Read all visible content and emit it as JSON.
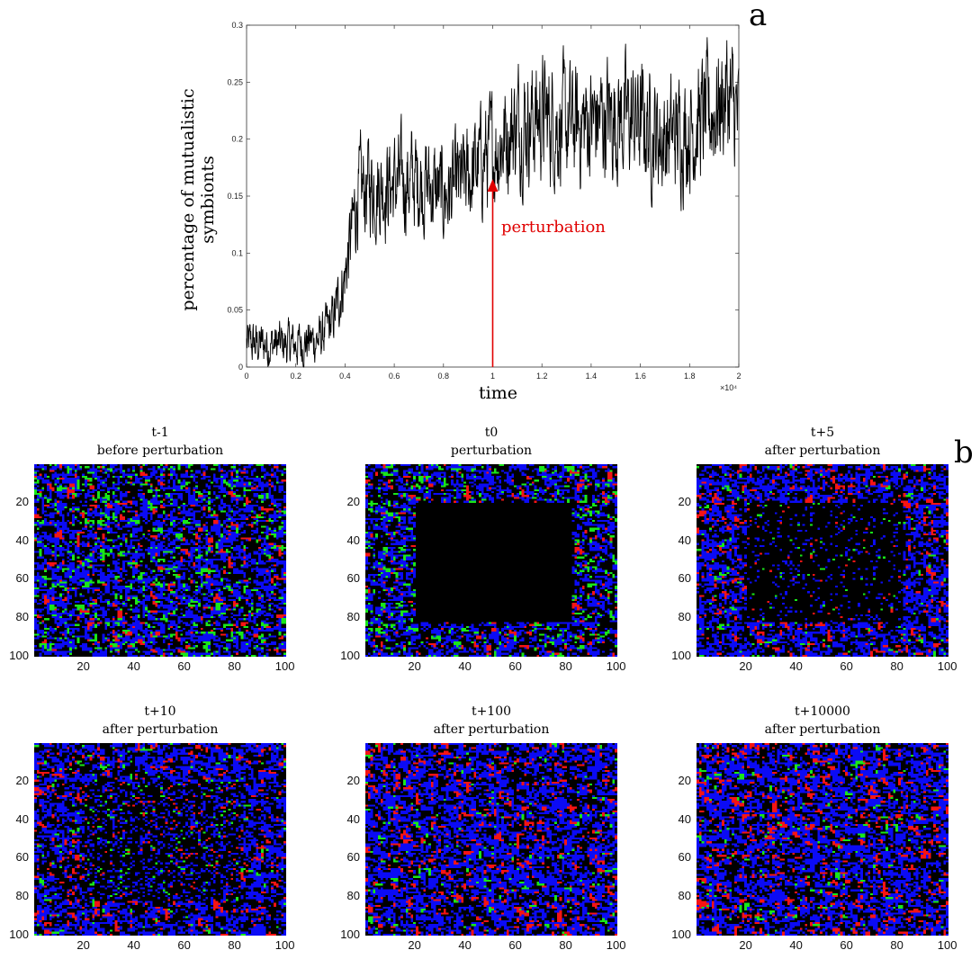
{
  "panel_a_letter": "a",
  "panel_b_letter": "b",
  "chart_data": [
    {
      "type": "line",
      "title": "",
      "xlabel": "time",
      "ylabel": "percentage of mutualistic symbionts",
      "x_multiplier_label": "×10⁴",
      "xlim": [
        0,
        2
      ],
      "ylim": [
        0,
        0.3
      ],
      "xticks": [
        "0",
        "0.2",
        "0.4",
        "0.6",
        "0.8",
        "1",
        "1.2",
        "1.4",
        "1.6",
        "1.8",
        "2"
      ],
      "yticks": [
        "0",
        "0.05",
        "0.1",
        "0.15",
        "0.2",
        "0.25",
        "0.3"
      ],
      "line_color": "#000000",
      "series": [
        {
          "x": [
            0,
            0.1,
            0.2,
            0.3,
            0.35,
            0.4,
            0.45,
            0.5,
            0.6,
            0.7,
            0.8,
            0.9,
            0.95,
            1.0,
            1.1,
            1.2,
            1.3,
            1.4,
            1.5,
            1.6,
            1.7,
            1.8,
            1.9,
            1.95,
            2.0
          ],
          "values": [
            0.02,
            0.02,
            0.02,
            0.025,
            0.04,
            0.08,
            0.15,
            0.16,
            0.16,
            0.165,
            0.15,
            0.165,
            0.18,
            0.19,
            0.215,
            0.22,
            0.21,
            0.215,
            0.22,
            0.215,
            0.2,
            0.21,
            0.225,
            0.24,
            0.215
          ]
        }
      ],
      "annotation": {
        "text": "perturbation",
        "x": 1,
        "y_tip": 0.165,
        "color": "#e00000"
      }
    },
    {
      "type": "heatmap",
      "title": "t-1",
      "subtitle": "before perturbation",
      "grid_size": 100,
      "xticks": [
        "20",
        "40",
        "60",
        "80",
        "100"
      ],
      "yticks": [
        "20",
        "40",
        "60",
        "80",
        "100"
      ],
      "colors": {
        "empty": "#000000",
        "blue": "#0b0bf5",
        "green": "#19e619",
        "red": "#f51414"
      },
      "fractions": {
        "blue": 0.38,
        "green": 0.1,
        "red": 0.05
      },
      "cleared_region": null
    },
    {
      "type": "heatmap",
      "title": "t0",
      "subtitle": "perturbation",
      "grid_size": 100,
      "xticks": [
        "20",
        "40",
        "60",
        "80",
        "100"
      ],
      "yticks": [
        "20",
        "40",
        "60",
        "80",
        "100"
      ],
      "colors": {
        "empty": "#000000",
        "blue": "#0b0bf5",
        "green": "#19e619",
        "red": "#f51414"
      },
      "fractions": {
        "blue": 0.38,
        "green": 0.1,
        "red": 0.05
      },
      "cleared_region": [
        20,
        82,
        20,
        82
      ]
    },
    {
      "type": "heatmap",
      "title": "t+5",
      "subtitle": "after perturbation",
      "grid_size": 100,
      "xticks": [
        "20",
        "40",
        "60",
        "80",
        "100"
      ],
      "yticks": [
        "20",
        "40",
        "60",
        "80",
        "100"
      ],
      "colors": {
        "empty": "#000000",
        "blue": "#0b0bf5",
        "green": "#19e619",
        "red": "#f51414"
      },
      "fractions": {
        "blue": 0.42,
        "green": 0.04,
        "red": 0.08
      },
      "cleared_region": [
        20,
        82,
        20,
        82
      ],
      "cleared_fill": 0.12
    },
    {
      "type": "heatmap",
      "title": "t+10",
      "subtitle": "after perturbation",
      "grid_size": 100,
      "xticks": [
        "20",
        "40",
        "60",
        "80",
        "100"
      ],
      "yticks": [
        "20",
        "40",
        "60",
        "80",
        "100"
      ],
      "colors": {
        "empty": "#000000",
        "blue": "#0b0bf5",
        "green": "#19e619",
        "red": "#f51414"
      },
      "fractions": {
        "blue": 0.42,
        "green": 0.03,
        "red": 0.08
      },
      "cleared_region": [
        20,
        82,
        20,
        82
      ],
      "cleared_fill": 0.3
    },
    {
      "type": "heatmap",
      "title": "t+100",
      "subtitle": "after perturbation",
      "grid_size": 100,
      "xticks": [
        "20",
        "40",
        "60",
        "80",
        "100"
      ],
      "yticks": [
        "20",
        "40",
        "60",
        "80",
        "100"
      ],
      "colors": {
        "empty": "#000000",
        "blue": "#0b0bf5",
        "green": "#19e619",
        "red": "#f51414"
      },
      "fractions": {
        "blue": 0.45,
        "green": 0.03,
        "red": 0.09
      },
      "cleared_region": null
    },
    {
      "type": "heatmap",
      "title": "t+10000",
      "subtitle": "after perturbation",
      "grid_size": 100,
      "xticks": [
        "20",
        "40",
        "60",
        "80",
        "100"
      ],
      "yticks": [
        "20",
        "40",
        "60",
        "80",
        "100"
      ],
      "colors": {
        "empty": "#000000",
        "blue": "#0b0bf5",
        "green": "#19e619",
        "red": "#f51414"
      },
      "fractions": {
        "blue": 0.45,
        "green": 0.03,
        "red": 0.1
      },
      "cleared_region": null
    }
  ]
}
